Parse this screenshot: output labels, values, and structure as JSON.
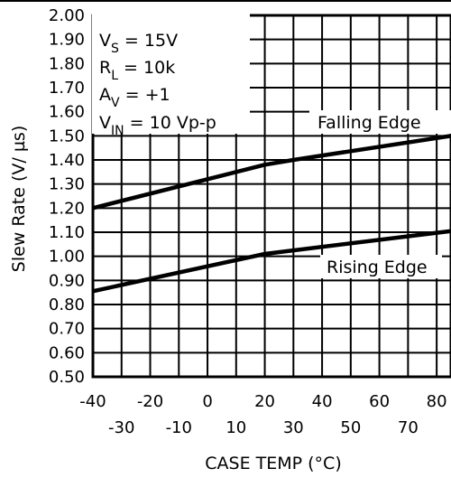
{
  "chart_data": {
    "type": "line",
    "xlabel": "CASE TEMP (°C)",
    "ylabel": "Slew Rate (V/ µs)",
    "xlim": [
      -40,
      85
    ],
    "ylim": [
      0.5,
      2.0
    ],
    "x_ticks_upper": [
      "-40",
      "-20",
      "0",
      "20",
      "40",
      "60",
      "80"
    ],
    "x_ticks_lower": [
      "-30",
      "-10",
      "10",
      "30",
      "50",
      "70"
    ],
    "y_ticks": [
      "0.50",
      "0.60",
      "0.70",
      "0.80",
      "0.90",
      "1.00",
      "1.10",
      "1.20",
      "1.30",
      "1.40",
      "1.50",
      "1.60",
      "1.70",
      "1.80",
      "1.90",
      "2.00"
    ],
    "grid": true,
    "conditions": {
      "vs": {
        "main": "V",
        "sub": "S",
        "rest": " = 15V"
      },
      "rl": {
        "main": "R",
        "sub": "L",
        "rest": " = 10k"
      },
      "av": {
        "main": "A",
        "sub": "V",
        "rest": " = +1"
      },
      "vin": {
        "main": "V",
        "sub": "IN",
        "rest": " = 10 Vp-p"
      }
    },
    "series": [
      {
        "name": "Falling Edge",
        "x": [
          -40,
          20,
          30,
          85
        ],
        "y": [
          1.2,
          1.38,
          1.4,
          1.5
        ]
      },
      {
        "name": "Rising Edge",
        "x": [
          -40,
          20,
          85
        ],
        "y": [
          0.855,
          1.01,
          1.105
        ]
      }
    ]
  }
}
